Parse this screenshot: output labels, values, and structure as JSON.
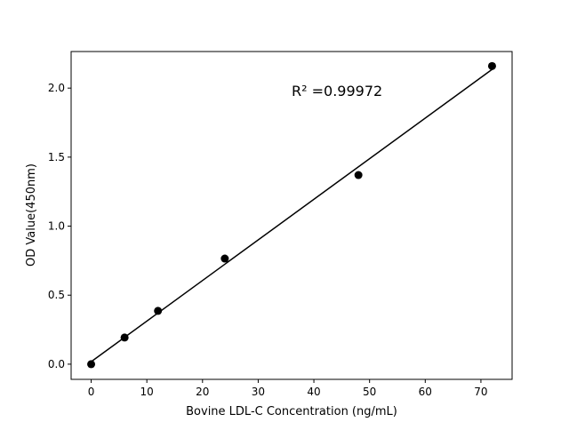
{
  "chart_data": {
    "type": "scatter",
    "title": "",
    "xlabel": "Bovine LDL-C Concentration (ng/mL)",
    "ylabel": "OD Value(450nm)",
    "xlim": [
      -3.6,
      75.6
    ],
    "ylim": [
      -0.11,
      2.265
    ],
    "xticks": [
      0,
      10,
      20,
      30,
      40,
      50,
      60,
      70
    ],
    "yticks": [
      0.0,
      0.5,
      1.0,
      1.5,
      2.0
    ],
    "xtick_labels": [
      "0",
      "10",
      "20",
      "30",
      "40",
      "50",
      "60",
      "70"
    ],
    "ytick_labels": [
      "0.0",
      "0.5",
      "1.0",
      "1.5",
      "2.0"
    ],
    "grid": false,
    "points": {
      "x": [
        0,
        6,
        12,
        24,
        48,
        72
      ],
      "y": [
        0.0,
        0.193,
        0.386,
        0.765,
        1.37,
        2.16
      ],
      "color": "#000000"
    },
    "fit_line": {
      "slope": 0.02941,
      "intercept": 0.018,
      "x_range": [
        0,
        72
      ],
      "color": "#000000"
    },
    "annotation": "R² =0.99972"
  }
}
